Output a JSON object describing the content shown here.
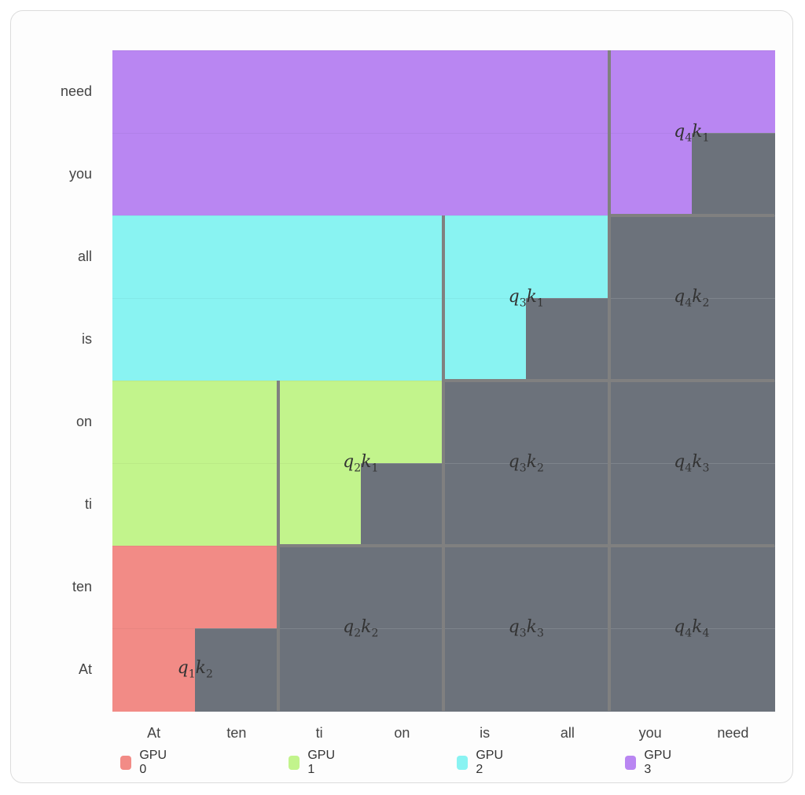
{
  "diagram": {
    "row_tokens": [
      "need",
      "you",
      "all",
      "is",
      "on",
      "ti",
      "ten",
      "At"
    ],
    "col_tokens": [
      "At",
      "ten",
      "ti",
      "on",
      "is",
      "all",
      "you",
      "need"
    ],
    "colors": {
      "masked": "#6c727b",
      "gpu0": "#f28b86",
      "gpu1": "#c2f48c",
      "gpu2": "#89f3f2",
      "gpu3": "#b986f2",
      "divider": "#808080",
      "gridline": "#7e848c"
    },
    "blocks": [
      {
        "gpu": 0,
        "q": "1",
        "k": "2",
        "row": 0,
        "col": 0
      },
      {
        "gpu": 1,
        "q": "2",
        "k": "1",
        "row": 1,
        "col": 1
      },
      {
        "gpu": 1,
        "q": "2",
        "k": "2",
        "row": 0,
        "col": 1
      },
      {
        "gpu": 2,
        "q": "3",
        "k": "1",
        "row": 2,
        "col": 2
      },
      {
        "gpu": 2,
        "q": "3",
        "k": "2",
        "row": 1,
        "col": 2
      },
      {
        "gpu": 2,
        "q": "3",
        "k": "3",
        "row": 0,
        "col": 2
      },
      {
        "gpu": 3,
        "q": "4",
        "k": "1",
        "row": 3,
        "col": 3
      },
      {
        "gpu": 3,
        "q": "4",
        "k": "2",
        "row": 2,
        "col": 3
      },
      {
        "gpu": 3,
        "q": "4",
        "k": "3",
        "row": 1,
        "col": 3
      },
      {
        "gpu": 3,
        "q": "4",
        "k": "4",
        "row": 0,
        "col": 3
      }
    ],
    "legend": [
      {
        "label": "GPU 0",
        "gpu": 0
      },
      {
        "label": "GPU 1",
        "gpu": 1
      },
      {
        "label": "GPU 2",
        "gpu": 2
      },
      {
        "label": "GPU 3",
        "gpu": 3
      }
    ]
  }
}
